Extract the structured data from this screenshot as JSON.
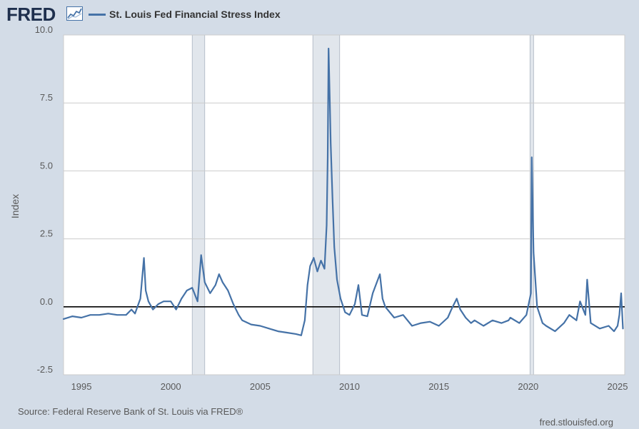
{
  "header": {
    "logo_text": "FRED",
    "logo_icon": "fred-mini-chart-icon"
  },
  "footer": {
    "source": "Source: Federal Reserve Bank of St. Louis via FRED®",
    "url": "fred.stlouisfed.org"
  },
  "colors": {
    "line": "#4572a7",
    "background": "#d3dce7",
    "plot_background": "#ffffff",
    "recession": "#e1e6ec",
    "grid": "#cccccc",
    "zero_line": "#000000"
  },
  "chart_data": {
    "type": "line",
    "ylabel": "Index",
    "xlim": [
      1994.0,
      2025.4
    ],
    "ylim": [
      -2.5,
      10.0
    ],
    "yticks": [
      -2.5,
      0.0,
      2.5,
      5.0,
      7.5,
      10.0
    ],
    "ytick_labels": [
      "-2.5",
      "0.0",
      "2.5",
      "5.0",
      "7.5",
      "10.0"
    ],
    "xticks": [
      1995,
      2000,
      2005,
      2010,
      2015,
      2020,
      2025
    ],
    "xtick_labels": [
      "1995",
      "2000",
      "2005",
      "2010",
      "2015",
      "2020",
      "2025"
    ],
    "grid": true,
    "legend_position": "top-left",
    "reference_line": 0.0,
    "recessions": [
      [
        2001.2,
        2001.9
      ],
      [
        2007.95,
        2009.45
      ],
      [
        2020.1,
        2020.3
      ]
    ],
    "series": [
      {
        "name": "St. Louis Fed Financial Stress Index",
        "x": [
          1994.0,
          1994.5,
          1995.0,
          1995.5,
          1996.0,
          1996.5,
          1997.0,
          1997.5,
          1997.8,
          1998.0,
          1998.3,
          1998.5,
          1998.6,
          1998.75,
          1999.0,
          1999.3,
          1999.6,
          2000.0,
          2000.3,
          2000.6,
          2000.9,
          2001.2,
          2001.5,
          2001.7,
          2001.9,
          2002.2,
          2002.5,
          2002.7,
          2002.9,
          2003.2,
          2003.5,
          2003.8,
          2004.0,
          2004.5,
          2005.0,
          2005.5,
          2006.0,
          2006.5,
          2007.0,
          2007.3,
          2007.5,
          2007.65,
          2007.8,
          2008.0,
          2008.2,
          2008.4,
          2008.6,
          2008.72,
          2008.78,
          2008.83,
          2008.9,
          2008.95,
          2009.05,
          2009.15,
          2009.3,
          2009.5,
          2009.75,
          2010.0,
          2010.3,
          2010.5,
          2010.7,
          2011.0,
          2011.3,
          2011.7,
          2011.85,
          2012.0,
          2012.5,
          2013.0,
          2013.5,
          2014.0,
          2014.5,
          2015.0,
          2015.5,
          2015.7,
          2016.0,
          2016.2,
          2016.5,
          2016.8,
          2017.0,
          2017.5,
          2018.0,
          2018.5,
          2018.9,
          2019.0,
          2019.5,
          2019.9,
          2020.15,
          2020.2,
          2020.3,
          2020.5,
          2020.8,
          2021.0,
          2021.5,
          2022.0,
          2022.3,
          2022.7,
          2022.9,
          2023.2,
          2023.3,
          2023.5,
          2024.0,
          2024.5,
          2024.8,
          2025.0,
          2025.1,
          2025.2,
          2025.3
        ],
        "values": [
          -0.45,
          -0.35,
          -0.4,
          -0.3,
          -0.3,
          -0.25,
          -0.3,
          -0.3,
          -0.1,
          -0.25,
          0.3,
          1.8,
          0.6,
          0.2,
          -0.1,
          0.1,
          0.2,
          0.2,
          -0.1,
          0.3,
          0.6,
          0.7,
          0.2,
          1.9,
          0.9,
          0.5,
          0.8,
          1.2,
          0.9,
          0.6,
          0.1,
          -0.3,
          -0.5,
          -0.65,
          -0.7,
          -0.8,
          -0.9,
          -0.95,
          -1.0,
          -1.05,
          -0.5,
          0.8,
          1.5,
          1.8,
          1.3,
          1.7,
          1.4,
          3.0,
          5.5,
          9.5,
          7.5,
          6.0,
          4.0,
          2.2,
          1.0,
          0.3,
          -0.2,
          -0.3,
          0.1,
          0.8,
          -0.3,
          -0.35,
          0.5,
          1.2,
          0.3,
          0.0,
          -0.4,
          -0.3,
          -0.7,
          -0.6,
          -0.55,
          -0.7,
          -0.4,
          -0.1,
          0.3,
          -0.1,
          -0.4,
          -0.6,
          -0.5,
          -0.7,
          -0.5,
          -0.6,
          -0.5,
          -0.4,
          -0.6,
          -0.3,
          0.5,
          5.5,
          2.0,
          0.0,
          -0.6,
          -0.7,
          -0.9,
          -0.6,
          -0.3,
          -0.5,
          0.2,
          -0.3,
          1.0,
          -0.6,
          -0.8,
          -0.7,
          -0.9,
          -0.7,
          -0.3,
          0.5,
          -0.8
        ]
      }
    ]
  }
}
